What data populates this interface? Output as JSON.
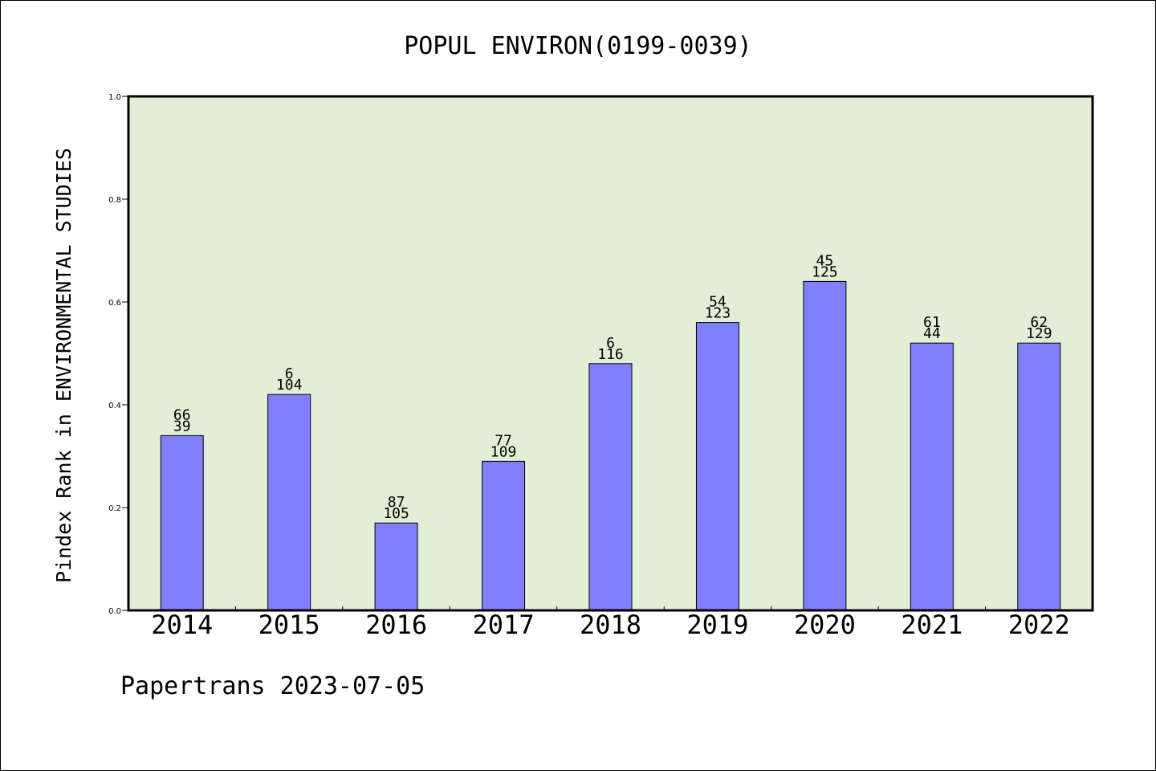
{
  "chart_data": {
    "type": "bar",
    "title": "POPUL ENVIRON(0199-0039)",
    "xlabel": "",
    "ylabel": "Pindex Rank in ENVIRONMENTAL STUDIES",
    "ylim": [
      0.0,
      1.0
    ],
    "yticks": [
      "0.0",
      "0.2",
      "0.4",
      "0.6",
      "0.8",
      "1.0"
    ],
    "grid": false,
    "categories": [
      "2014",
      "2015",
      "2016",
      "2017",
      "2018",
      "2019",
      "2020",
      "2021",
      "2022"
    ],
    "values": [
      0.34,
      0.42,
      0.17,
      0.29,
      0.48,
      0.56,
      0.64,
      0.52,
      0.52
    ],
    "labels_top": [
      "66",
      "6",
      "87",
      "77",
      "6",
      "54",
      "45",
      "61",
      "62"
    ],
    "labels_bottom": [
      "39",
      "104",
      "105",
      "109",
      "116",
      "123",
      "125",
      "44",
      "129"
    ],
    "bar_color": "#8080ff",
    "plot_background": "#e2efd6"
  },
  "footer": "Papertrans 2023-07-05"
}
